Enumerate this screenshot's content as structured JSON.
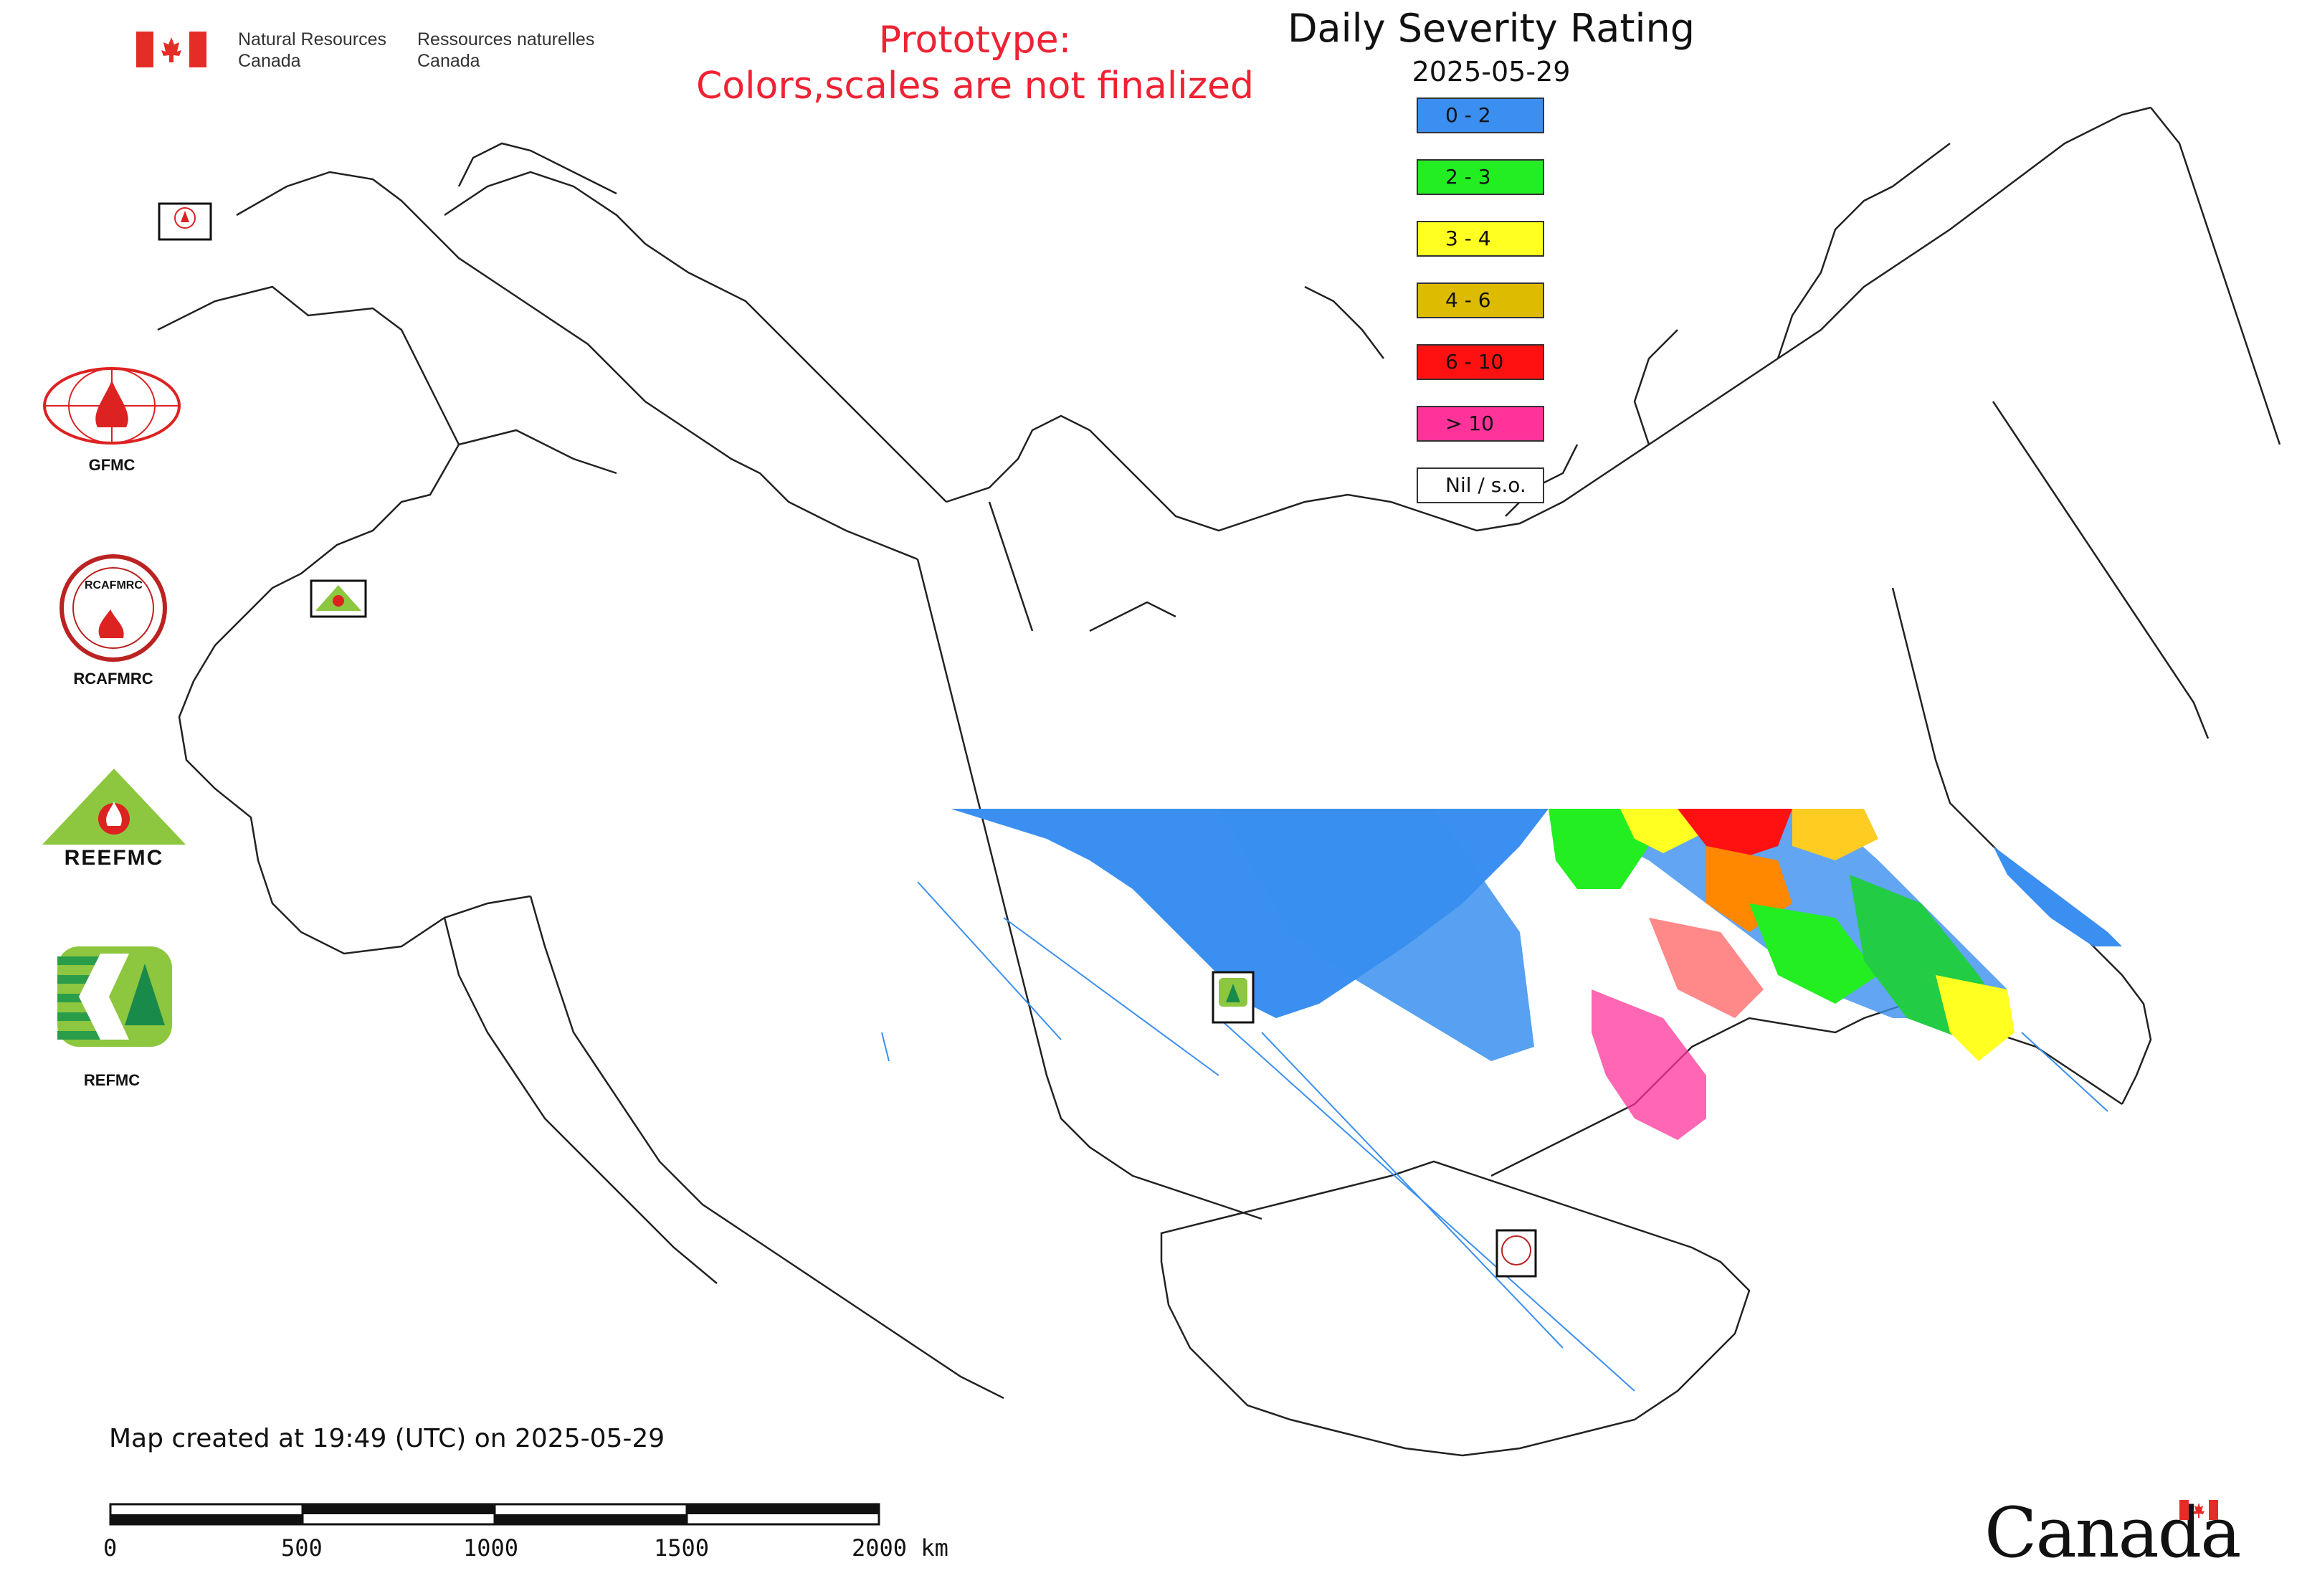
{
  "header": {
    "agency_en_line1": "Natural Resources",
    "agency_en_line2": "Canada",
    "agency_fr_line1": "Ressources naturelles",
    "agency_fr_line2": "Canada",
    "prototype_line1": "Prototype:",
    "prototype_line2": "Colors,scales are not finalized",
    "title": "Daily Severity Rating",
    "date": "2025-05-29"
  },
  "legend": {
    "items": [
      {
        "label": "0 - 2",
        "color": "#3a8ff0"
      },
      {
        "label": "2 - 3",
        "color": "#22ee22"
      },
      {
        "label": "3 - 4",
        "color": "#ffff22"
      },
      {
        "label": "4 - 6",
        "color": "#ddbb00"
      },
      {
        "label": "6 - 10",
        "color": "#ff1111"
      },
      {
        "label": "> 10",
        "color": "#ff3399"
      },
      {
        "label": "Nil / s.o.",
        "color": "#ffffff"
      }
    ]
  },
  "logos": {
    "gfmc": "GFMC",
    "rcafmrc": "RCAFMRC",
    "reefmc": "REEFMC",
    "refmc": "REFMC",
    "map_marker_gfmc": "GFMC",
    "map_marker_rcafmrc": "RCAFMRC"
  },
  "footer": {
    "created": "Map created at 19:49 (UTC) on 2025-05-29",
    "scale_labels": [
      "0",
      "500",
      "1000",
      "1500",
      "2000 km"
    ],
    "wordmark": "Canada"
  },
  "icons": {
    "flag": "canada-flag-icon",
    "leaf": "maple-leaf-icon"
  }
}
